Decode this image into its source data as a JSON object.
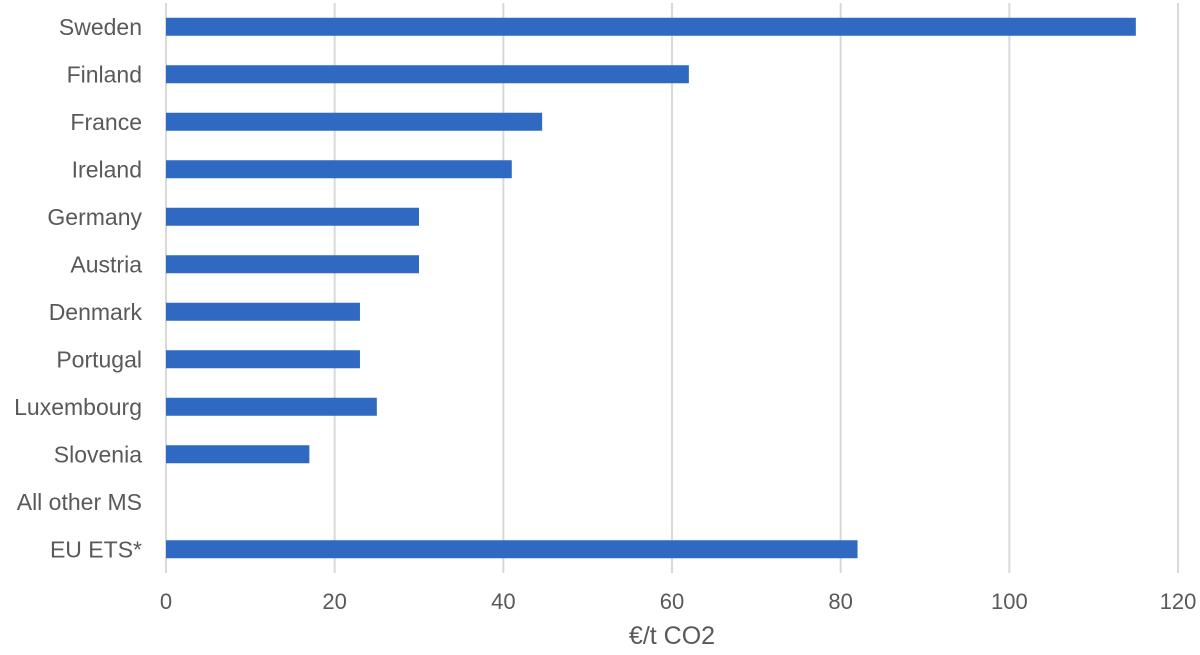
{
  "chart_data": {
    "type": "bar",
    "orientation": "horizontal",
    "categories": [
      "Sweden",
      "Finland",
      "France",
      "Ireland",
      "Germany",
      "Austria",
      "Denmark",
      "Portugal",
      "Luxembourg",
      "Slovenia",
      "All other MS",
      "EU ETS*"
    ],
    "values": [
      115,
      62,
      44.6,
      41,
      30,
      30,
      23,
      23,
      25,
      17,
      0,
      82
    ],
    "xlabel": "€/t CO2",
    "ylabel": "",
    "title": "",
    "xlim": [
      0,
      120
    ],
    "xticks": [
      "0",
      "20",
      "40",
      "60",
      "80",
      "100",
      "120"
    ],
    "grid": "vertical",
    "legend": "none",
    "bar_color": "#2f69c1"
  }
}
